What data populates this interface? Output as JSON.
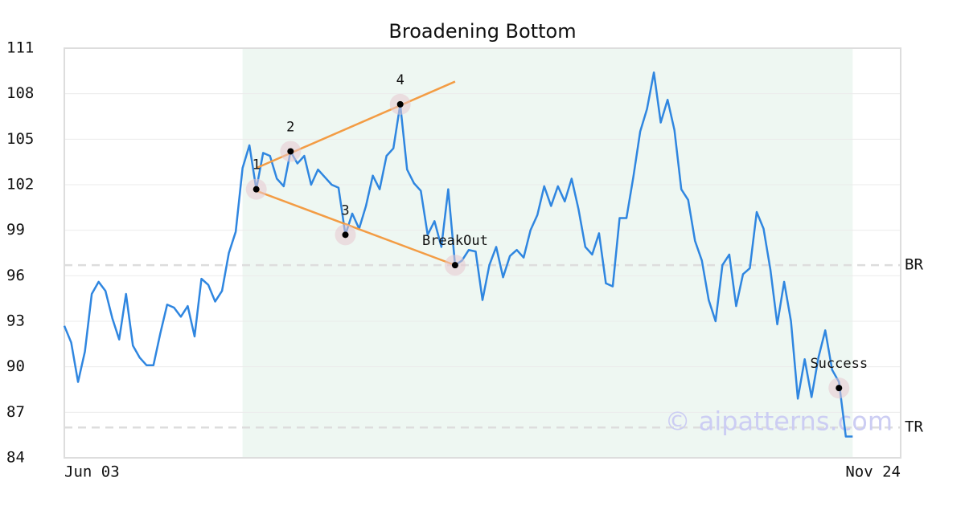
{
  "chart_data": {
    "type": "line",
    "title": "Broadening Bottom",
    "watermark": "© aipatterns.com",
    "categories": [
      "Jun 03",
      null,
      null,
      null,
      null,
      null,
      null,
      null,
      null,
      null,
      null,
      null,
      null,
      null,
      null,
      null,
      null,
      null,
      null,
      null,
      null,
      null,
      null,
      null,
      null,
      null,
      null,
      null,
      null,
      null,
      null,
      null,
      null,
      null,
      null,
      null,
      null,
      null,
      null,
      null,
      null,
      null,
      null,
      null,
      null,
      null,
      null,
      null,
      null,
      null,
      null,
      null,
      null,
      null,
      null,
      null,
      null,
      null,
      null,
      null,
      null,
      null,
      null,
      null,
      null,
      null,
      null,
      null,
      null,
      null,
      null,
      null,
      null,
      null,
      null,
      null,
      null,
      null,
      null,
      null,
      null,
      null,
      null,
      null,
      null,
      null,
      null,
      null,
      null,
      null,
      null,
      null,
      null,
      null,
      null,
      null,
      null,
      null,
      null,
      null,
      null,
      null,
      null,
      null,
      null,
      null,
      null,
      null,
      null,
      null,
      null,
      null,
      null,
      null,
      null,
      null,
      null,
      null,
      null,
      null,
      null,
      null,
      "Nov 24"
    ],
    "series": [
      {
        "color": "#2f86e0",
        "values": [
          92.7,
          91.6,
          89.0,
          91.0,
          94.8,
          95.6,
          95.0,
          93.2,
          91.8,
          94.8,
          91.4,
          90.6,
          90.1,
          90.1,
          92.2,
          94.1,
          93.9,
          93.3,
          94.0,
          92.0,
          95.8,
          95.4,
          94.3,
          95.0,
          97.5,
          98.9,
          103.1,
          104.6,
          101.7,
          104.1,
          103.9,
          102.4,
          101.9,
          104.2,
          103.4,
          103.9,
          102.0,
          103.0,
          102.5,
          102.0,
          101.8,
          98.7,
          100.1,
          99.1,
          100.6,
          102.6,
          101.7,
          103.9,
          104.4,
          107.3,
          103.0,
          102.1,
          101.6,
          98.7,
          99.6,
          97.9,
          101.7,
          96.7,
          97.0,
          97.7,
          97.6,
          94.4,
          96.7,
          97.9,
          95.9,
          97.3,
          97.7,
          97.2,
          99.0,
          100.0,
          101.9,
          100.6,
          101.9,
          100.9,
          102.4,
          100.4,
          97.9,
          97.4,
          98.8,
          95.5,
          95.3,
          99.8,
          99.8,
          102.5,
          105.5,
          107.0,
          109.4,
          106.1,
          107.6,
          105.6,
          101.7,
          101.0,
          98.3,
          97.0,
          94.4,
          93.0,
          96.7,
          97.4,
          94.0,
          96.1,
          96.5,
          100.2,
          99.1,
          96.4,
          92.8,
          95.6,
          93.0,
          87.9,
          90.5,
          88.0,
          90.6,
          92.4,
          89.8,
          89.0,
          85.4,
          85.4,
          null,
          null,
          null,
          null,
          null,
          null,
          null
        ]
      }
    ],
    "ylim": [
      84,
      111
    ],
    "yticks": [
      84,
      87,
      90,
      93,
      96,
      99,
      102,
      105,
      108,
      111
    ],
    "grid": true,
    "shaded": {
      "from": 26,
      "to": 115,
      "color": "#eef7f2"
    },
    "trend_lines": [
      {
        "color": "#f39c44",
        "x": [
          28,
          57
        ],
        "values": [
          103.1,
          108.8
        ]
      },
      {
        "color": "#f39c44",
        "x": [
          28,
          57
        ],
        "values": [
          101.6,
          96.7
        ]
      }
    ],
    "annotations": [
      {
        "label": "1",
        "x": 28,
        "value": 101.7
      },
      {
        "label": "2",
        "x": 33,
        "value": 104.2
      },
      {
        "label": "3",
        "x": 41,
        "value": 98.7
      },
      {
        "label": "4",
        "x": 49,
        "value": 107.3
      },
      {
        "label": "BreakOut",
        "x": 57,
        "value": 96.7
      },
      {
        "label": "Success",
        "x": 113,
        "value": 88.6
      }
    ],
    "levels": [
      {
        "label": "BR",
        "value": 96.7
      },
      {
        "label": "TR",
        "value": 86.0
      }
    ]
  }
}
